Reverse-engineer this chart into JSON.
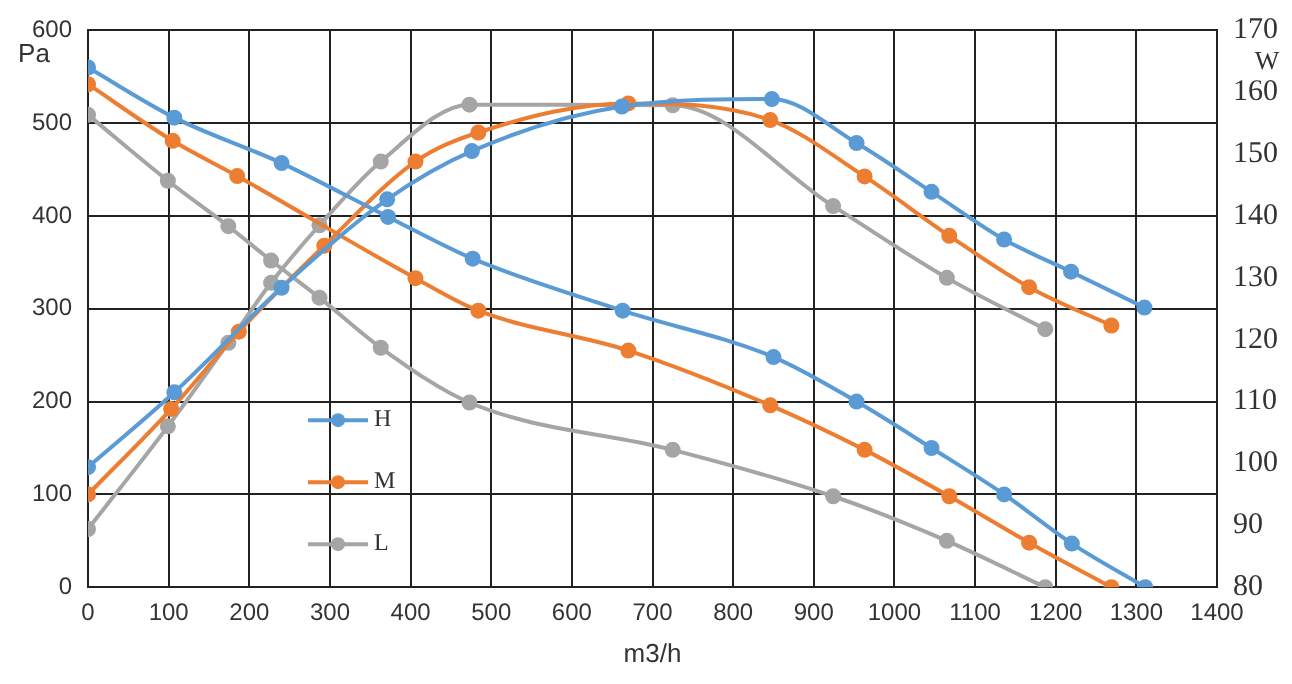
{
  "chart_data": {
    "type": "line",
    "xlabel": "m3/h",
    "ylabel": "Pa",
    "y2label": "W",
    "xlim": [
      0,
      1400
    ],
    "xticks": [
      0,
      100,
      200,
      300,
      400,
      500,
      600,
      700,
      800,
      900,
      1000,
      1100,
      1200,
      1300,
      1400
    ],
    "ylim": [
      0,
      600
    ],
    "yticks": [
      0,
      100,
      200,
      300,
      400,
      500,
      600
    ],
    "y2lim": [
      80,
      170
    ],
    "y2ticks": [
      80,
      90,
      100,
      110,
      120,
      130,
      140,
      150,
      160,
      170
    ],
    "grid": true,
    "legend": "left",
    "marker": "circle",
    "line_style": "solid",
    "series": [
      {
        "name": "H",
        "color": "#5b9bd5",
        "x": [
          0,
          107,
          240,
          372,
          477,
          663,
          850,
          953,
          1046,
          1136,
          1220,
          1311
        ],
        "values": [
          560,
          506,
          457,
          399,
          354,
          298,
          248,
          200,
          150,
          100,
          47,
          0
        ]
      },
      {
        "color": "#5b9bd5",
        "axis": "y2",
        "x": [
          0,
          107,
          240,
          371,
          476,
          662,
          848,
          953,
          1046,
          1136,
          1219,
          1310
        ],
        "values": [
          99.4,
          111.5,
          128.4,
          142.7,
          150.5,
          157.7,
          158.9,
          151.8,
          143.9,
          136.2,
          131,
          125.2
        ]
      },
      {
        "name": "M",
        "color": "#ed7d31",
        "x": [
          0,
          105,
          185,
          406,
          484,
          670,
          846,
          963,
          1068,
          1167,
          1269
        ],
        "values": [
          542,
          481,
          443,
          333,
          298,
          255,
          196,
          148,
          98,
          48,
          0
        ]
      },
      {
        "color": "#ed7d31",
        "axis": "y2",
        "x": [
          0,
          103,
          187,
          293,
          406,
          484,
          670,
          846,
          963,
          1068,
          1167,
          1269
        ],
        "values": [
          95,
          108.8,
          121.3,
          135.2,
          148.8,
          153.5,
          158.2,
          155.5,
          146.4,
          136.8,
          128.5,
          122.3
        ]
      },
      {
        "name": "L",
        "color": "#a5a5a5",
        "x": [
          0,
          99,
          174,
          227,
          287,
          363,
          473,
          725,
          924,
          1065,
          1187
        ],
        "values": [
          509,
          438,
          389,
          352,
          312,
          258,
          199,
          148,
          98,
          50,
          0
        ]
      },
      {
        "color": "#a5a5a5",
        "axis": "y2",
        "x": [
          0,
          99,
          174,
          227,
          287,
          363,
          473,
          725,
          924,
          1065,
          1187
        ],
        "values": [
          89.4,
          106,
          119.5,
          129.2,
          138.5,
          148.8,
          158,
          157.9,
          141.6,
          130,
          121.7
        ]
      }
    ]
  }
}
